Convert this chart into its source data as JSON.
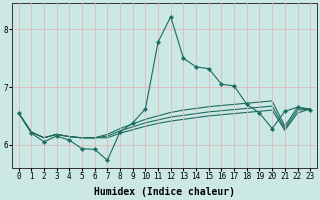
{
  "xlabel": "Humidex (Indice chaleur)",
  "background_color": "#cce8e4",
  "grid_color": "#e0b8b8",
  "line_color": "#1a6b60",
  "x_values": [
    0,
    1,
    2,
    3,
    4,
    5,
    6,
    7,
    8,
    9,
    10,
    11,
    12,
    13,
    14,
    15,
    16,
    17,
    18,
    19,
    20,
    21,
    22,
    23
  ],
  "line1": [
    6.55,
    6.2,
    6.05,
    6.15,
    6.08,
    5.93,
    5.92,
    5.73,
    6.22,
    6.38,
    6.62,
    7.78,
    8.22,
    7.5,
    7.35,
    7.32,
    7.05,
    7.02,
    6.7,
    6.55,
    6.28,
    6.58,
    6.65,
    6.6
  ],
  "line2": [
    6.55,
    6.22,
    6.12,
    6.18,
    6.14,
    6.12,
    6.12,
    6.18,
    6.28,
    6.36,
    6.44,
    6.5,
    6.56,
    6.6,
    6.63,
    6.66,
    6.68,
    6.7,
    6.72,
    6.74,
    6.76,
    6.32,
    6.65,
    6.62
  ],
  "line3": [
    6.55,
    6.22,
    6.12,
    6.18,
    6.14,
    6.12,
    6.12,
    6.15,
    6.24,
    6.31,
    6.38,
    6.43,
    6.48,
    6.51,
    6.54,
    6.57,
    6.59,
    6.61,
    6.63,
    6.65,
    6.67,
    6.28,
    6.6,
    6.62
  ],
  "line4": [
    6.55,
    6.22,
    6.12,
    6.18,
    6.14,
    6.12,
    6.12,
    6.12,
    6.2,
    6.26,
    6.32,
    6.37,
    6.41,
    6.44,
    6.47,
    6.5,
    6.52,
    6.54,
    6.56,
    6.58,
    6.6,
    6.25,
    6.55,
    6.62
  ],
  "ylim": [
    5.6,
    8.45
  ],
  "yticks": [
    6,
    7,
    8
  ],
  "xticks": [
    0,
    1,
    2,
    3,
    4,
    5,
    6,
    7,
    8,
    9,
    10,
    11,
    12,
    13,
    14,
    15,
    16,
    17,
    18,
    19,
    20,
    21,
    22,
    23
  ],
  "tick_fontsize": 5.5,
  "label_fontsize": 7.0
}
